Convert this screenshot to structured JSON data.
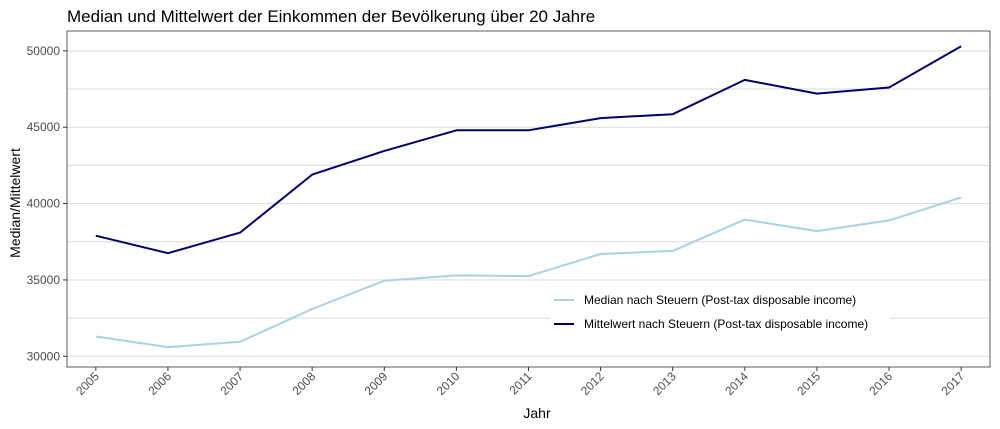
{
  "chart_data": {
    "type": "line",
    "title": "Median und Mittelwert der Einkommen der Bevölkerung über 20 Jahre",
    "xlabel": "Jahr",
    "ylabel": "Median/Mittelwert",
    "x": [
      2005,
      2006,
      2007,
      2008,
      2009,
      2010,
      2011,
      2012,
      2013,
      2014,
      2015,
      2016,
      2017
    ],
    "x_tick_labels": [
      "2005",
      "2006",
      "2007",
      "2008",
      "2009",
      "2010",
      "2011",
      "2012",
      "2013",
      "2014",
      "2015",
      "2016",
      "2017"
    ],
    "y_ticks": [
      30000,
      35000,
      40000,
      45000,
      50000
    ],
    "y_tick_labels": [
      "30000",
      "35000",
      "40000",
      "45000",
      "50000"
    ],
    "ylim": [
      29300,
      51300
    ],
    "xlim": [
      2004.6,
      2017.4
    ],
    "grid": true,
    "legend_position": "inside-bottom-center",
    "series": [
      {
        "name": "Median nach Steuern (Post-tax disposable income)",
        "color": "#a6d4e0",
        "values": [
          31300,
          30600,
          30950,
          33100,
          34950,
          35300,
          35250,
          36700,
          36900,
          38950,
          38200,
          38900,
          40400
        ]
      },
      {
        "name": "Mittelwert nach Steuern (Post-tax disposable income)",
        "color": "#00006e",
        "values": [
          37900,
          36750,
          38100,
          41900,
          43450,
          44800,
          44800,
          45600,
          45850,
          48100,
          47200,
          47600,
          50300
        ]
      }
    ]
  }
}
